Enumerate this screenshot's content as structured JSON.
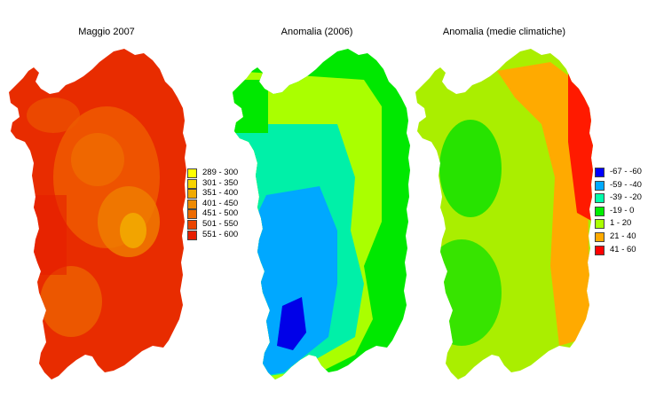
{
  "panels": [
    {
      "title": "Maggio 2007",
      "legend": [
        {
          "label": "289 - 300",
          "color": "#ffff00"
        },
        {
          "label": "301 - 350",
          "color": "#f7d400"
        },
        {
          "label": "351 - 400",
          "color": "#f0aa00"
        },
        {
          "label": "401 - 450",
          "color": "#ee8a00"
        },
        {
          "label": "451 - 500",
          "color": "#ec6a00"
        },
        {
          "label": "501 - 550",
          "color": "#ea4400"
        },
        {
          "label": "551 - 600",
          "color": "#e61e00"
        }
      ]
    },
    {
      "title": "Anomalia (2006)"
    },
    {
      "title": "Anomalia (medie climatiche)",
      "legend": [
        {
          "label": "-67 - -60",
          "color": "#0000ff"
        },
        {
          "label": "-59 - -40",
          "color": "#00aaff"
        },
        {
          "label": "-39 - -20",
          "color": "#00ffaa"
        },
        {
          "label": "-19 - 0",
          "color": "#00ee00"
        },
        {
          "label": "1 - 20",
          "color": "#aaff00"
        },
        {
          "label": "21 - 40",
          "color": "#ffaa00"
        },
        {
          "label": "41 - 60",
          "color": "#ff0000"
        }
      ]
    }
  ]
}
